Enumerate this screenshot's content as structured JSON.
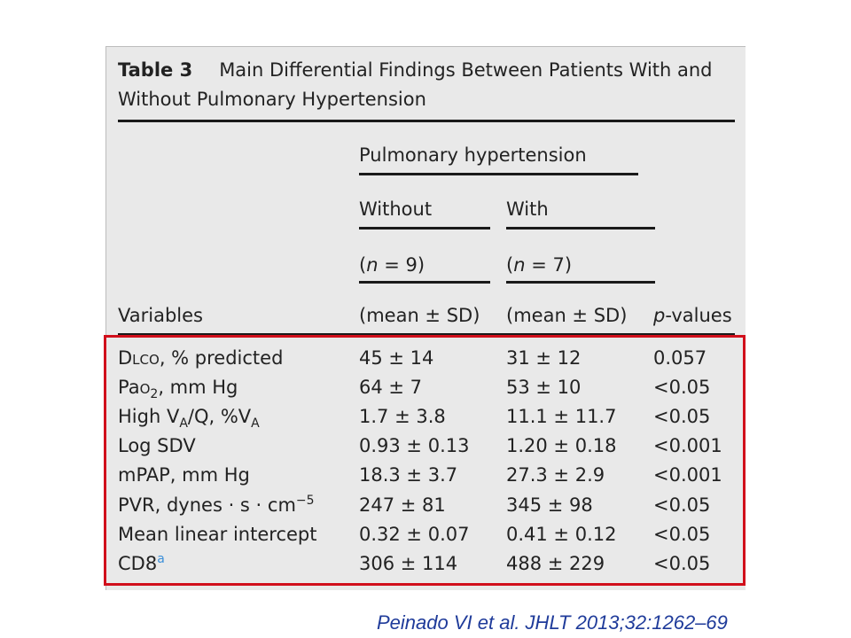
{
  "table": {
    "number": "Table 3",
    "caption": "Main Differential Findings Between Patients With and Without Pulmonary Hypertension",
    "group_header": "Pulmonary hypertension",
    "col_without": "Without",
    "col_with": "With",
    "n_without": "(n = 9)",
    "n_with": "(n = 7)",
    "col_variables": "Variables",
    "col_stat_without": "(mean ± SD)",
    "col_stat_with": "(mean ± SD)",
    "col_p": "p-values",
    "rows": [
      {
        "variable": "DLCO, % predicted",
        "without": "45 ± 14",
        "with": "31 ± 12",
        "p": "0.057"
      },
      {
        "variable": "PaO2, mm Hg",
        "without": "64 ± 7",
        "with": "53 ± 10",
        "p": "<0.05"
      },
      {
        "variable": "High VA/Q, %VA",
        "without": "1.7 ± 3.8",
        "with": "11.1 ± 11.7",
        "p": "<0.05"
      },
      {
        "variable": "Log SDV",
        "without": "0.93 ± 0.13",
        "with": "1.20 ± 0.18",
        "p": "<0.001"
      },
      {
        "variable": "mPAP, mm Hg",
        "without": "18.3 ± 3.7",
        "with": "27.3 ± 2.9",
        "p": "<0.001"
      },
      {
        "variable": "PVR, dynes · s · cm−5",
        "without": "247 ± 81",
        "with": "345 ± 98",
        "p": "<0.05"
      },
      {
        "variable": "Mean linear intercept",
        "without": "0.32 ± 0.07",
        "with": "0.41 ± 0.12",
        "p": "<0.05"
      },
      {
        "variable": "CD8a",
        "without": "306 ± 114",
        "with": "488 ± 229",
        "p": "<0.05"
      }
    ]
  },
  "citation": "Peinado VI et al. JHLT 2013;32:1262–69",
  "colors": {
    "highlight_box": "#d10f1b",
    "citation": "#1f3b9a",
    "panel": "#e9e9e9"
  }
}
